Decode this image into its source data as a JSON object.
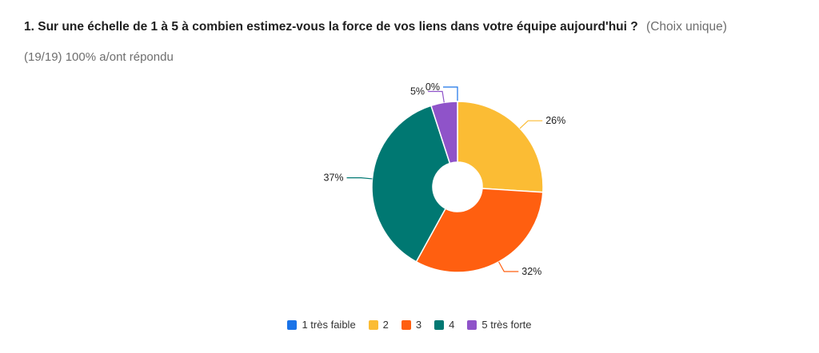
{
  "question": {
    "title": "1. Sur une échelle de 1 à 5 à combien estimez-vous la force de vos liens dans votre équipe aujourd'hui ?",
    "type": "(Choix unique)"
  },
  "responses": "(19/19) 100% a/ont répondu",
  "chart_data": {
    "type": "pie",
    "donut": true,
    "legend_position": "bottom",
    "categories": [
      "1 très faible",
      "2",
      "3",
      "4",
      "5 très forte"
    ],
    "values": [
      0,
      26,
      32,
      37,
      5
    ],
    "labels": [
      "0%",
      "26%",
      "32%",
      "37%",
      "5%"
    ],
    "colors": [
      "#1a73e8",
      "#fbbc34",
      "#ff5f10",
      "#007872",
      "#8f53c9"
    ]
  }
}
